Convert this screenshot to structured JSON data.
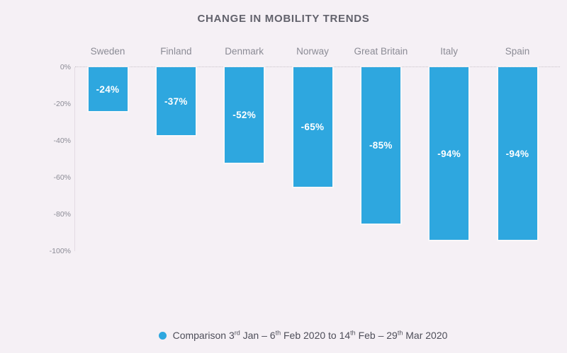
{
  "title": "CHANGE IN MOBILITY TRENDS",
  "colors": {
    "background": "#F5F0F5",
    "bar": "#2EA7DF",
    "title_text": "#62626C",
    "axis_text": "#8B8B95",
    "bar_label_text": "#FFFFFF",
    "gridline": "#C9C2C9",
    "legend_text": "#4E4E59"
  },
  "chart_data": {
    "type": "bar",
    "orientation": "vertical-negative",
    "title": "CHANGE IN MOBILITY TRENDS",
    "categories": [
      "Sweden",
      "Finland",
      "Denmark",
      "Norway",
      "Great Britain",
      "Italy",
      "Spain"
    ],
    "values": [
      -24,
      -37,
      -52,
      -65,
      -85,
      -94,
      -94
    ],
    "bar_labels": [
      "-24%",
      "-37%",
      "-52%",
      "-65%",
      "-85%",
      "-94%",
      "-94%"
    ],
    "xlabel": "",
    "ylabel": "",
    "ylim": [
      0,
      -100
    ],
    "y_ticks": [
      {
        "value": 0,
        "label": "0%"
      },
      {
        "value": -20,
        "label": "-20%"
      },
      {
        "value": -40,
        "label": "-40%"
      },
      {
        "value": -60,
        "label": "-60%"
      },
      {
        "value": -80,
        "label": "-80%"
      },
      {
        "value": -100,
        "label": "-100%"
      }
    ],
    "grid": "dotted zero-line only, light vertical left axis line",
    "legend_position": "bottom-center",
    "legend": {
      "marker": "circle",
      "text_plain": "Comparison 3rd Jan – 6th Feb 2020 to 14th Feb – 29th Mar 2020",
      "segments": [
        {
          "t": "Comparison 3"
        },
        {
          "sup": "rd"
        },
        {
          "t": " Jan – 6"
        },
        {
          "sup": "th"
        },
        {
          "t": " Feb 2020 to 14"
        },
        {
          "sup": "th"
        },
        {
          "t": " Feb – 29"
        },
        {
          "sup": "th"
        },
        {
          "t": " Mar 2020"
        }
      ]
    }
  }
}
